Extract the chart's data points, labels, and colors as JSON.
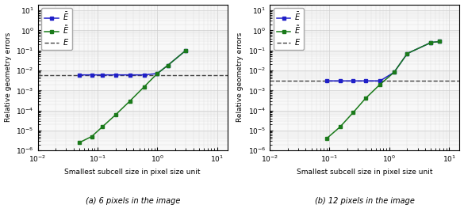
{
  "left_plot": {
    "E_bar_x": [
      0.05,
      0.08,
      0.12,
      0.2,
      0.35,
      0.6,
      1.0,
      1.5,
      3.0
    ],
    "E_bar_y": [
      0.006,
      0.006,
      0.006,
      0.006,
      0.006,
      0.006,
      0.007,
      0.018,
      0.1
    ],
    "E_tilde_x": [
      0.05,
      0.08,
      0.12,
      0.2,
      0.35,
      0.6,
      1.0,
      1.5,
      3.0
    ],
    "E_tilde_y": [
      2.5e-06,
      5e-06,
      1.5e-05,
      6e-05,
      0.0003,
      0.0015,
      0.007,
      0.018,
      0.1
    ],
    "E_hline": 0.0057,
    "xlim": [
      0.01,
      15
    ],
    "ylim": [
      1e-06,
      20
    ],
    "ylabel": "Relative geometry errors",
    "xlabel": "Smallest subcell size in pixel size unit",
    "caption": "(a) 6 pixels in the image",
    "show_ylabel": true
  },
  "right_plot": {
    "E_bar_x": [
      0.09,
      0.15,
      0.25,
      0.4,
      0.7,
      1.2,
      2.0,
      5.0,
      7.0
    ],
    "E_bar_y": [
      0.003,
      0.003,
      0.003,
      0.003,
      0.003,
      0.008,
      0.07,
      0.25,
      0.28
    ],
    "E_tilde_x": [
      0.09,
      0.15,
      0.25,
      0.4,
      0.7,
      1.2,
      2.0,
      5.0,
      7.0
    ],
    "E_tilde_y": [
      4e-06,
      1.5e-05,
      8e-05,
      0.0004,
      0.002,
      0.008,
      0.07,
      0.25,
      0.28
    ],
    "E_hline": 0.003,
    "xlim": [
      0.01,
      15
    ],
    "ylim": [
      1e-06,
      20
    ],
    "ylabel": "Relative geometry errors",
    "xlabel": "Smallest subcell size in pixel size unit",
    "caption": "(b) 12 pixels in the image",
    "show_ylabel": true
  },
  "legend_label_bar": "$\\bar{E}$",
  "legend_label_tilde": "$\\tilde{E}$",
  "legend_label_E": "$E$",
  "E_bar_color": "#1f1fc8",
  "E_tilde_color": "#1a7a1a",
  "E_hline_color": "#444444",
  "marker": "s",
  "markersize": 3.5,
  "linewidth": 1.1,
  "bg_color": "#f8f8f8"
}
